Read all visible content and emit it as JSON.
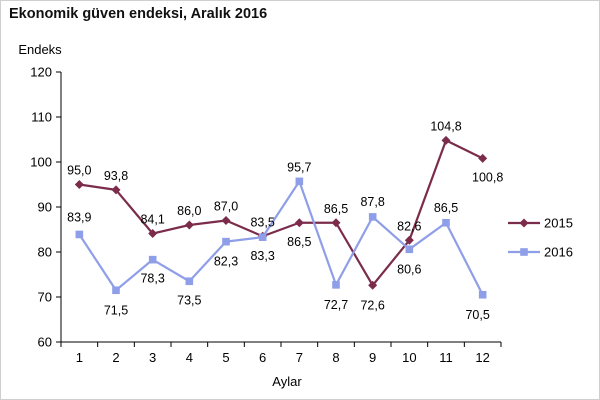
{
  "title": "Ekonomik güven endeksi, Aralık 2016",
  "colors": {
    "s2015": "#7b2c4b",
    "s2016": "#8f9ee8",
    "axis": "#000000"
  },
  "chart_data": {
    "type": "line",
    "title": "Ekonomik güven endeksi, Aralık 2016",
    "xlabel": "Aylar",
    "ylabel": "Endeks",
    "x": [
      1,
      2,
      3,
      4,
      5,
      6,
      7,
      8,
      9,
      10,
      11,
      12
    ],
    "ylim": [
      60,
      120
    ],
    "yticks": [
      60,
      70,
      80,
      90,
      100,
      110,
      120
    ],
    "grid": false,
    "legend": "right",
    "series": [
      {
        "name": "2015",
        "color": "#7b2c4b",
        "marker": "diamond",
        "values": [
          95.0,
          93.8,
          84.1,
          86.0,
          87.0,
          83.5,
          86.5,
          86.5,
          72.6,
          82.6,
          104.8,
          100.8
        ],
        "labels": [
          "95,0",
          "93,8",
          "84,1",
          "86,0",
          "87,0",
          "83,5",
          "86,5",
          "86,5",
          "72,6",
          "82,6",
          "104,8",
          "100,8"
        ]
      },
      {
        "name": "2016",
        "color": "#8f9ee8",
        "marker": "square",
        "values": [
          83.9,
          71.5,
          78.3,
          73.5,
          82.3,
          83.3,
          95.7,
          72.7,
          87.8,
          80.6,
          86.5,
          70.5
        ],
        "labels": [
          "83,9",
          "71,5",
          "78,3",
          "73,5",
          "82,3",
          "83,3",
          "95,7",
          "72,7",
          "87,8",
          "80,6",
          "86,5",
          "70,5"
        ]
      }
    ]
  }
}
